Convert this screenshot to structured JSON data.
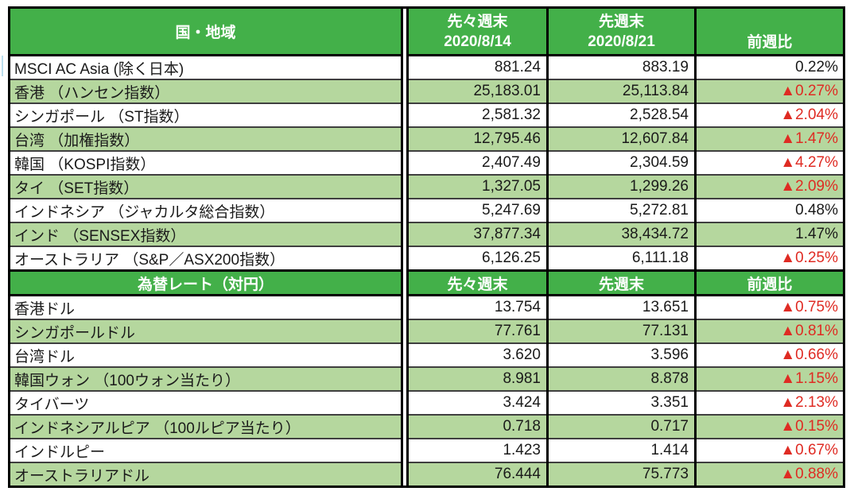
{
  "colors": {
    "header_green": "#43B049",
    "row_light_green": "#B5D79E",
    "negative_red": "#DF2B23",
    "row_border": "#3f3f3f",
    "table_border": "#000000"
  },
  "icons": {
    "negative_marker": "▲"
  },
  "chart_data": [
    {
      "type": "table",
      "title": "国・地域",
      "header": {
        "col1": "国・地域",
        "col2_top": "先々週末",
        "col2_bottom": "2020/8/14",
        "col3_top": "先週末",
        "col3_bottom": "2020/8/21",
        "col4": "前週比",
        "tall": true
      },
      "rows": [
        {
          "label": "MSCI AC Asia (除く日本)",
          "prev_week": "881.24",
          "last_week": "883.19",
          "change": "0.22%",
          "negative": false
        },
        {
          "label": "香港 （ハンセン指数）",
          "prev_week": "25,183.01",
          "last_week": "25,113.84",
          "change": "▲0.27%",
          "negative": true
        },
        {
          "label": "シンガポール （ST指数）",
          "prev_week": "2,581.32",
          "last_week": "2,528.54",
          "change": "▲2.04%",
          "negative": true
        },
        {
          "label": "台湾 （加権指数）",
          "prev_week": "12,795.46",
          "last_week": "12,607.84",
          "change": "▲1.47%",
          "negative": true
        },
        {
          "label": "韓国 （KOSPI指数）",
          "prev_week": "2,407.49",
          "last_week": "2,304.59",
          "change": "▲4.27%",
          "negative": true
        },
        {
          "label": "タイ （SET指数）",
          "prev_week": "1,327.05",
          "last_week": "1,299.26",
          "change": "▲2.09%",
          "negative": true
        },
        {
          "label": "インドネシア （ジャカルタ総合指数）",
          "prev_week": "5,247.69",
          "last_week": "5,272.81",
          "change": "0.48%",
          "negative": false
        },
        {
          "label": "インド （SENSEX指数）",
          "prev_week": "37,877.34",
          "last_week": "38,434.72",
          "change": "1.47%",
          "negative": false
        },
        {
          "label": "オーストラリア （S&P／ASX200指数）",
          "prev_week": "6,126.25",
          "last_week": "6,111.18",
          "change": "▲0.25%",
          "negative": true
        }
      ]
    },
    {
      "type": "table",
      "title": "為替レート（対円）",
      "header": {
        "col1": "為替レート（対円）",
        "col2": "先々週末",
        "col3": "先週末",
        "col4": "前週比",
        "tall": false
      },
      "rows": [
        {
          "label": "香港ドル",
          "prev_week": "13.754",
          "last_week": "13.651",
          "change": "▲0.75%",
          "negative": true
        },
        {
          "label": "シンガポールドル",
          "prev_week": "77.761",
          "last_week": "77.131",
          "change": "▲0.81%",
          "negative": true
        },
        {
          "label": "台湾ドル",
          "prev_week": "3.620",
          "last_week": "3.596",
          "change": "▲0.66%",
          "negative": true
        },
        {
          "label": "韓国ウォン （100ウォン当たり）",
          "prev_week": "8.981",
          "last_week": "8.878",
          "change": "▲1.15%",
          "negative": true
        },
        {
          "label": "タイバーツ",
          "prev_week": "3.424",
          "last_week": "3.351",
          "change": "▲2.13%",
          "negative": true
        },
        {
          "label": "インドネシアルピア （100ルピア当たり）",
          "prev_week": "0.718",
          "last_week": "0.717",
          "change": "▲0.15%",
          "negative": true
        },
        {
          "label": "インドルピー",
          "prev_week": "1.423",
          "last_week": "1.414",
          "change": "▲0.67%",
          "negative": true
        },
        {
          "label": "オーストラリアドル",
          "prev_week": "76.444",
          "last_week": "75.773",
          "change": "▲0.88%",
          "negative": true
        }
      ]
    }
  ]
}
